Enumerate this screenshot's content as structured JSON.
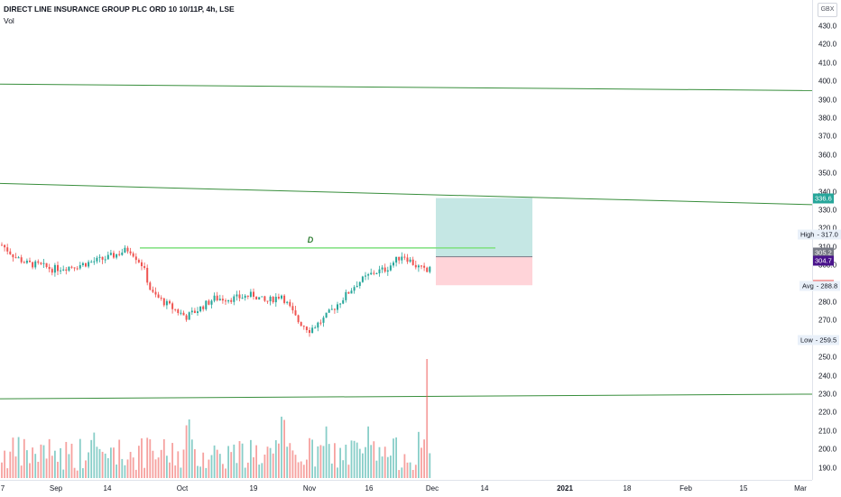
{
  "header": {
    "symbol_title": "DIRECT LINE INSURANCE GROUP PLC ORD 10 10/11P, 4h, LSE",
    "volume_label": "Vol",
    "currency": "GBX"
  },
  "price_axis": {
    "ticks": [
      "430.0",
      "420.0",
      "410.0",
      "400.0",
      "390.0",
      "380.0",
      "370.0",
      "360.0",
      "350.0",
      "340.0",
      "330.0",
      "320.0",
      "310.0",
      "300.0",
      "290.0",
      "280.0",
      "270.0",
      "260.0",
      "250.0",
      "240.0",
      "230.0",
      "220.0",
      "210.0",
      "200.0",
      "190.0"
    ],
    "tags": {
      "target": "336.6",
      "current": "305.2",
      "entry": "304.7",
      "stop": "289.2"
    },
    "labeled_tags": {
      "high": {
        "label": "High",
        "value": "317.0"
      },
      "avg": {
        "label": "Avg",
        "value": "288.8"
      },
      "low": {
        "label": "Low",
        "value": "259.5"
      }
    }
  },
  "time_axis": {
    "labels": [
      "7",
      "Sep",
      "14",
      "Oct",
      "19",
      "Nov",
      "16",
      "Dec",
      "14",
      "2021",
      "18",
      "Feb",
      "15",
      "Mar"
    ],
    "bold_labels": [
      "2021"
    ]
  },
  "annotation": {
    "pattern_label": "D"
  },
  "colors": {
    "up": "#26a69a",
    "down": "#ef5350",
    "trendline": "#388e3c",
    "horizontal_line": "#7ee07e",
    "target_zone": "#b2dfdb",
    "stop_zone": "#ffcdd2",
    "target_tag": "#26a69a",
    "current_tag": "#787b86",
    "entry_tag": "#4a148c",
    "stop_tag": "#ef5350"
  },
  "chart_data": {
    "type": "candlestick",
    "interval": "4h",
    "ylim": [
      185,
      435
    ],
    "trend_lines": [
      {
        "name": "upper",
        "from": {
          "date": "2020-08-07",
          "price": 398.5
        },
        "to": {
          "date": "2021-03-01",
          "price": 395.0
        }
      },
      {
        "name": "middle",
        "from": {
          "date": "2020-08-07",
          "price": 344.5
        },
        "to": {
          "date": "2021-03-01",
          "price": 333.0
        }
      },
      {
        "name": "lower",
        "from": {
          "date": "2020-08-07",
          "price": 227.5
        },
        "to": {
          "date": "2021-03-01",
          "price": 230.0
        }
      }
    ],
    "horizontal_level": {
      "price": 309.5,
      "from_date": "2020-09-19",
      "to_date": "2020-12-10"
    },
    "position": {
      "entry": 304.7,
      "target": 336.6,
      "stop": 289.2,
      "from_date": "2020-12-01",
      "to_date": "2020-12-20"
    },
    "price_path": [
      {
        "date": "2020-08-07",
        "price": 312
      },
      {
        "date": "2020-08-15",
        "price": 305
      },
      {
        "date": "2020-08-22",
        "price": 301
      },
      {
        "date": "2020-08-29",
        "price": 300
      },
      {
        "date": "2020-09-05",
        "price": 298
      },
      {
        "date": "2020-09-10",
        "price": 300
      },
      {
        "date": "2020-09-14",
        "price": 304
      },
      {
        "date": "2020-09-19",
        "price": 309
      },
      {
        "date": "2020-09-22",
        "price": 300
      },
      {
        "date": "2020-09-24",
        "price": 285
      },
      {
        "date": "2020-09-28",
        "price": 278
      },
      {
        "date": "2020-10-02",
        "price": 272
      },
      {
        "date": "2020-10-05",
        "price": 276
      },
      {
        "date": "2020-10-09",
        "price": 282
      },
      {
        "date": "2020-10-14",
        "price": 282
      },
      {
        "date": "2020-10-19",
        "price": 284
      },
      {
        "date": "2020-10-22",
        "price": 280
      },
      {
        "date": "2020-10-26",
        "price": 284
      },
      {
        "date": "2020-10-30",
        "price": 270
      },
      {
        "date": "2020-11-02",
        "price": 265
      },
      {
        "date": "2020-11-05",
        "price": 270
      },
      {
        "date": "2020-11-09",
        "price": 280
      },
      {
        "date": "2020-11-13",
        "price": 290
      },
      {
        "date": "2020-11-17",
        "price": 296
      },
      {
        "date": "2020-11-20",
        "price": 298
      },
      {
        "date": "2020-11-24",
        "price": 306
      },
      {
        "date": "2020-11-27",
        "price": 300
      },
      {
        "date": "2020-11-30",
        "price": 296
      },
      {
        "date": "2020-12-01",
        "price": 305
      }
    ],
    "volume_spike": {
      "date": "2020-11-30"
    }
  }
}
